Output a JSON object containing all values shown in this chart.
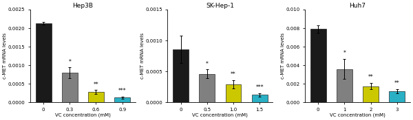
{
  "panels": [
    {
      "title": "Hep3B",
      "xlabel": "VC concentration (mM)",
      "ylabel": "c-MET mRNA levels",
      "xtick_labels": [
        "0",
        "0.3",
        "0.6",
        "0.9"
      ],
      "bar_values": [
        0.00213,
        0.0008,
        0.00028,
        0.00013
      ],
      "error_values": [
        3.5e-05,
        0.00014,
        6e-05,
        3e-05
      ],
      "bar_colors": [
        "#1a1a1a",
        "#808080",
        "#ccc800",
        "#2ab0c5"
      ],
      "ylim": [
        0,
        0.0025
      ],
      "yticks": [
        0.0,
        0.0005,
        0.001,
        0.0015,
        0.002,
        0.0025
      ],
      "ytick_labels": [
        "0.0000",
        "0.0005",
        "0.0010",
        "0.0015",
        "0.0020",
        "0.0025"
      ],
      "sig_labels": [
        "",
        "*",
        "**",
        "***"
      ]
    },
    {
      "title": "SK-Hep-1",
      "xlabel": "VC concentration (mM)",
      "ylabel": "c-MET mRNA levels",
      "xtick_labels": [
        "0",
        "0.5",
        "1.0",
        "1.5"
      ],
      "bar_values": [
        0.00086,
        0.00046,
        0.00029,
        0.00012
      ],
      "error_values": [
        0.00022,
        7e-05,
        7e-05,
        3e-05
      ],
      "bar_colors": [
        "#1a1a1a",
        "#808080",
        "#ccc800",
        "#2ab0c5"
      ],
      "ylim": [
        0,
        0.0015
      ],
      "yticks": [
        0.0,
        0.0005,
        0.001,
        0.0015
      ],
      "ytick_labels": [
        "0.0000",
        "0.0005",
        "0.0010",
        "0.0015"
      ],
      "sig_labels": [
        "",
        "*",
        "**",
        "***"
      ]
    },
    {
      "title": "Huh7",
      "xlabel": "VC concentration (mM)",
      "ylabel": "c-MET mRNA levels",
      "xtick_labels": [
        "0",
        "1",
        "2",
        "3"
      ],
      "bar_values": [
        0.0079,
        0.0036,
        0.00175,
        0.0012
      ],
      "error_values": [
        0.0004,
        0.0011,
        0.00035,
        0.00025
      ],
      "bar_colors": [
        "#1a1a1a",
        "#808080",
        "#ccc800",
        "#2ab0c5"
      ],
      "ylim": [
        0,
        0.01
      ],
      "yticks": [
        0.0,
        0.002,
        0.004,
        0.006,
        0.008,
        0.01
      ],
      "ytick_labels": [
        "0.000",
        "0.002",
        "0.004",
        "0.006",
        "0.008",
        "0.010"
      ],
      "sig_labels": [
        "",
        "*",
        "**",
        "**"
      ]
    }
  ],
  "figure_bg": "#ffffff",
  "bar_width": 0.6,
  "title_fontsize": 6.5,
  "label_fontsize": 5.0,
  "tick_fontsize": 5.0,
  "sig_fontsize": 5.5
}
